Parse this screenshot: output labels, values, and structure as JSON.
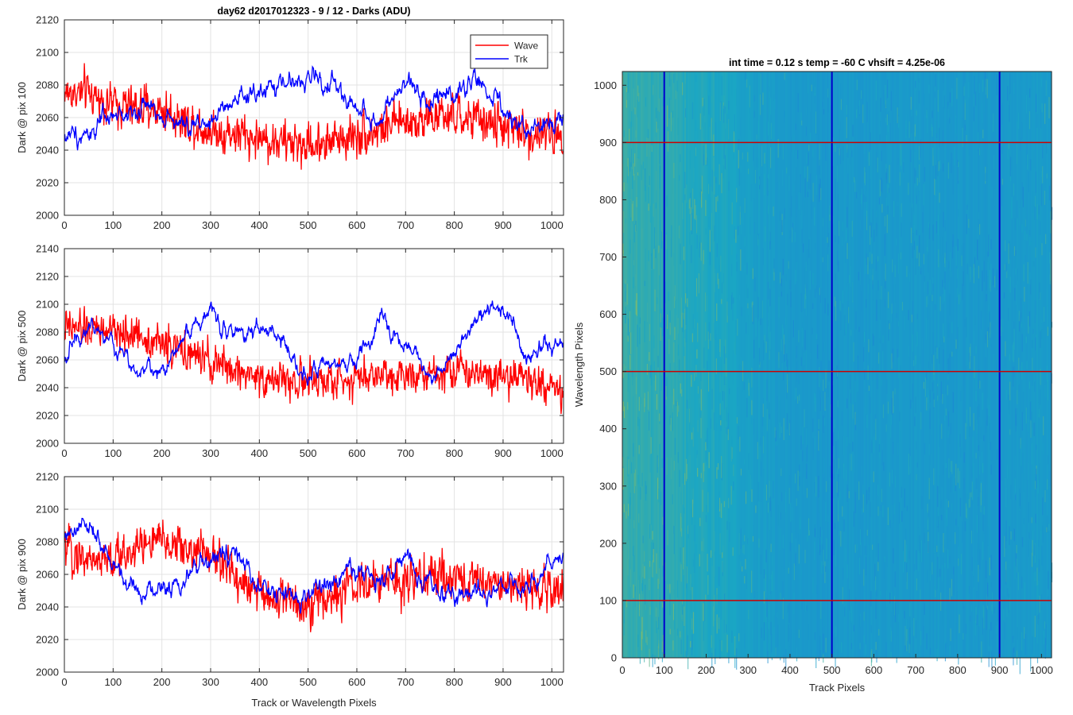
{
  "figure": {
    "title": "day62 d2017012323 - 9 / 12 - Darks (ADU)",
    "legend": {
      "position": "top-right",
      "entries": [
        {
          "label": "Wave",
          "color": "#ff0000"
        },
        {
          "label": "Trk",
          "color": "#0000ff"
        }
      ]
    }
  },
  "chart_data": [
    {
      "type": "line",
      "ylabel": "Dark @ pix 100",
      "xlabel": "",
      "xlim": [
        0,
        1024
      ],
      "ylim": [
        2000,
        2120
      ],
      "xticks": [
        0,
        100,
        200,
        300,
        400,
        500,
        600,
        700,
        800,
        900,
        1000
      ],
      "yticks": [
        2000,
        2020,
        2040,
        2060,
        2080,
        2100,
        2120
      ],
      "grid": true,
      "series": [
        {
          "name": "Wave",
          "color": "#ff0000",
          "x": [
            0,
            50,
            100,
            150,
            200,
            250,
            300,
            350,
            400,
            450,
            500,
            550,
            600,
            650,
            700,
            750,
            800,
            850,
            900,
            950,
            1023
          ],
          "values": [
            2075,
            2075,
            2068,
            2066,
            2065,
            2058,
            2052,
            2050,
            2047,
            2045,
            2043,
            2046,
            2050,
            2053,
            2058,
            2060,
            2060,
            2058,
            2055,
            2050,
            2050
          ]
        },
        {
          "name": "Trk",
          "color": "#0000ff",
          "x": [
            0,
            50,
            100,
            150,
            200,
            250,
            300,
            350,
            400,
            450,
            500,
            550,
            600,
            650,
            700,
            750,
            800,
            850,
            900,
            950,
            1023
          ],
          "values": [
            2048,
            2052,
            2058,
            2066,
            2065,
            2052,
            2060,
            2066,
            2076,
            2080,
            2085,
            2080,
            2066,
            2058,
            2080,
            2072,
            2078,
            2082,
            2062,
            2052,
            2062
          ]
        }
      ]
    },
    {
      "type": "line",
      "ylabel": "Dark @ pix 500",
      "xlabel": "",
      "xlim": [
        0,
        1024
      ],
      "ylim": [
        2000,
        2140
      ],
      "xticks": [
        0,
        100,
        200,
        300,
        400,
        500,
        600,
        700,
        800,
        900,
        1000
      ],
      "yticks": [
        2000,
        2020,
        2040,
        2060,
        2080,
        2100,
        2120,
        2140
      ],
      "grid": true,
      "series": [
        {
          "name": "Wave",
          "color": "#ff0000",
          "x": [
            0,
            50,
            100,
            150,
            200,
            250,
            300,
            350,
            400,
            450,
            500,
            550,
            600,
            650,
            700,
            750,
            800,
            850,
            900,
            950,
            1023
          ],
          "values": [
            2082,
            2082,
            2080,
            2078,
            2072,
            2065,
            2058,
            2052,
            2048,
            2045,
            2044,
            2045,
            2048,
            2050,
            2050,
            2052,
            2052,
            2052,
            2050,
            2047,
            2035
          ]
        },
        {
          "name": "Trk",
          "color": "#0000ff",
          "x": [
            0,
            50,
            100,
            150,
            200,
            250,
            300,
            350,
            400,
            450,
            500,
            550,
            600,
            650,
            700,
            750,
            800,
            850,
            900,
            950,
            1023
          ],
          "values": [
            2062,
            2088,
            2070,
            2055,
            2050,
            2080,
            2095,
            2078,
            2085,
            2070,
            2050,
            2052,
            2060,
            2088,
            2072,
            2048,
            2068,
            2090,
            2100,
            2062,
            2075
          ]
        }
      ]
    },
    {
      "type": "line",
      "ylabel": "Dark @ pix 900",
      "xlabel": "Track or Wavelength Pixels",
      "xlim": [
        0,
        1024
      ],
      "ylim": [
        2000,
        2120
      ],
      "xticks": [
        0,
        100,
        200,
        300,
        400,
        500,
        600,
        700,
        800,
        900,
        1000
      ],
      "yticks": [
        2000,
        2020,
        2040,
        2060,
        2080,
        2100,
        2120
      ],
      "grid": true,
      "series": [
        {
          "name": "Wave",
          "color": "#ff0000",
          "x": [
            0,
            50,
            100,
            150,
            200,
            250,
            300,
            350,
            400,
            450,
            500,
            550,
            600,
            650,
            700,
            750,
            800,
            850,
            900,
            950,
            1023
          ],
          "values": [
            2075,
            2070,
            2068,
            2078,
            2080,
            2076,
            2072,
            2060,
            2048,
            2044,
            2042,
            2046,
            2052,
            2055,
            2058,
            2058,
            2058,
            2056,
            2054,
            2052,
            2050
          ]
        },
        {
          "name": "Trk",
          "color": "#0000ff",
          "x": [
            0,
            50,
            100,
            150,
            200,
            250,
            300,
            350,
            400,
            450,
            500,
            550,
            600,
            650,
            700,
            750,
            800,
            850,
            900,
            950,
            1023
          ],
          "values": [
            2080,
            2090,
            2065,
            2050,
            2052,
            2058,
            2068,
            2072,
            2050,
            2045,
            2048,
            2055,
            2062,
            2058,
            2068,
            2052,
            2044,
            2052,
            2055,
            2052,
            2072
          ]
        }
      ]
    },
    {
      "type": "heatmap",
      "title": "int time = 0.12 s    temp = -60 C    vhsift = 4.25e-06",
      "xlabel": "Track Pixels",
      "ylabel": "Wavelength Pixels",
      "xlim": [
        0,
        1024
      ],
      "ylim": [
        0,
        1024
      ],
      "xticks": [
        0,
        100,
        200,
        300,
        400,
        500,
        600,
        700,
        800,
        900,
        1000
      ],
      "yticks": [
        0,
        100,
        200,
        300,
        400,
        500,
        600,
        700,
        800,
        900,
        1000
      ],
      "colors": {
        "low": "#1b7fd8",
        "mid": "#1aa6c4",
        "high": "#b8c83e"
      },
      "column_profile": {
        "x": [
          0,
          50,
          150,
          250,
          300,
          350,
          450,
          550,
          700,
          850,
          1000,
          1024
        ],
        "level": [
          0.62,
          0.58,
          0.52,
          0.42,
          0.32,
          0.22,
          0.12,
          0.16,
          0.18,
          0.14,
          0.2,
          0.22
        ]
      },
      "marker_lines": {
        "vertical": {
          "x": [
            100,
            500,
            900
          ],
          "color": "#0000cc"
        },
        "horizontal": {
          "y": [
            100,
            500,
            900
          ],
          "color": "#cc0000"
        }
      }
    }
  ]
}
